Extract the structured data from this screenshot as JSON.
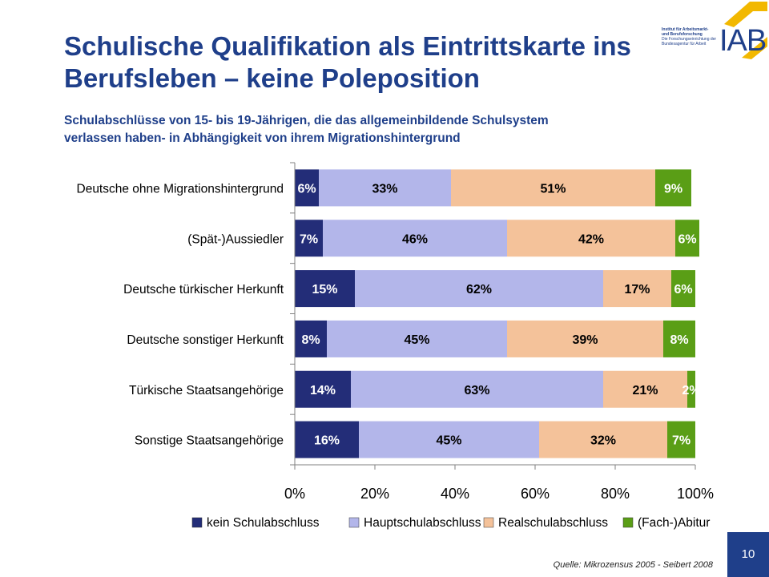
{
  "slide": {
    "title_line1": "Schulische Qualifikation als Eintrittskarte ins",
    "title_line2": "Berufsleben – keine Poleposition",
    "subtitle_line1": "Schulabschlüsse von 15- bis 19-Jährigen, die das allgemeinbildende Schulsystem",
    "subtitle_line2": "verlassen haben- in Abhängigkeit von ihrem Migrationshintergrund",
    "source": "Quelle: Mikrozensus 2005  - Seibert 2008",
    "page_number": "10"
  },
  "logo": {
    "text": "IAB",
    "line1": "Institut für Arbeitsmarkt-",
    "line2": "und Berufsforschung",
    "line3": "Die Forschungseinrichtung der",
    "line4": "Bundesagentur für Arbeit",
    "color_mark": "#f2b800",
    "color_text": "#1f3f8a"
  },
  "chart_data": {
    "type": "bar",
    "orientation": "horizontal",
    "stacked": true,
    "categories": [
      "Deutsche ohne Migrationshintergrund",
      "(Spät-)Aussiedler",
      "Deutsche türkischer Herkunft",
      "Deutsche sonstiger Herkunft",
      "Türkische Staatsangehörige",
      "Sonstige Staatsangehörige"
    ],
    "series": [
      {
        "name": "kein Schulabschluss",
        "color": "#232d78",
        "label_color": "#ffffff",
        "values": [
          6,
          7,
          15,
          8,
          14,
          16
        ]
      },
      {
        "name": "Hauptschulabschluss",
        "color": "#b3b6ea",
        "label_color": "#000000",
        "values": [
          33,
          46,
          62,
          45,
          63,
          45
        ]
      },
      {
        "name": "Realschulabschluss",
        "color": "#f4c29a",
        "label_color": "#000000",
        "values": [
          51,
          42,
          17,
          39,
          21,
          32
        ]
      },
      {
        "name": "(Fach-)Abitur",
        "color": "#5a9e16",
        "label_color": "#ffffff",
        "values": [
          9,
          6,
          6,
          8,
          2,
          7
        ]
      }
    ],
    "data_label_suffix": "%",
    "xlim": [
      0,
      100
    ],
    "xticks": [
      "0%",
      "20%",
      "40%",
      "60%",
      "80%",
      "100%"
    ],
    "grid": false,
    "legend_position": "bottom"
  }
}
